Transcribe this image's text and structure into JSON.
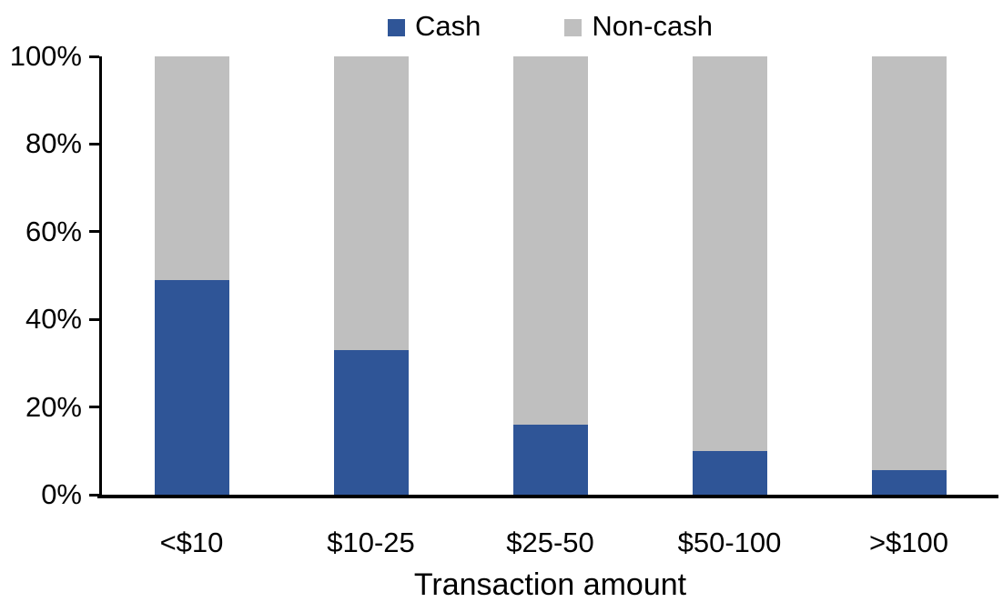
{
  "legend": {
    "items": [
      {
        "label": "Cash",
        "color": "#2F5597"
      },
      {
        "label": "Non-cash",
        "color": "#BFBFBF"
      }
    ]
  },
  "chart_data": {
    "type": "bar",
    "variant": "stacked-100-percent",
    "title": "",
    "xlabel": "Transaction amount",
    "ylabel": "",
    "categories": [
      "<$10",
      "$10-25",
      "$25-50",
      "$50-100",
      ">$100"
    ],
    "series": [
      {
        "name": "Cash",
        "color": "#2F5597",
        "values": [
          49,
          33,
          16,
          10,
          5.5
        ]
      },
      {
        "name": "Non-cash",
        "color": "#BFBFBF",
        "values": [
          51,
          67,
          84,
          90,
          94.5
        ]
      }
    ],
    "y_ticks": [
      "0%",
      "20%",
      "40%",
      "60%",
      "80%",
      "100%"
    ],
    "ylim": [
      0,
      100
    ],
    "grid": false,
    "legend_position": "top",
    "colors": {
      "axis": "#000000",
      "text": "#000000",
      "background": "#FFFFFF"
    }
  }
}
